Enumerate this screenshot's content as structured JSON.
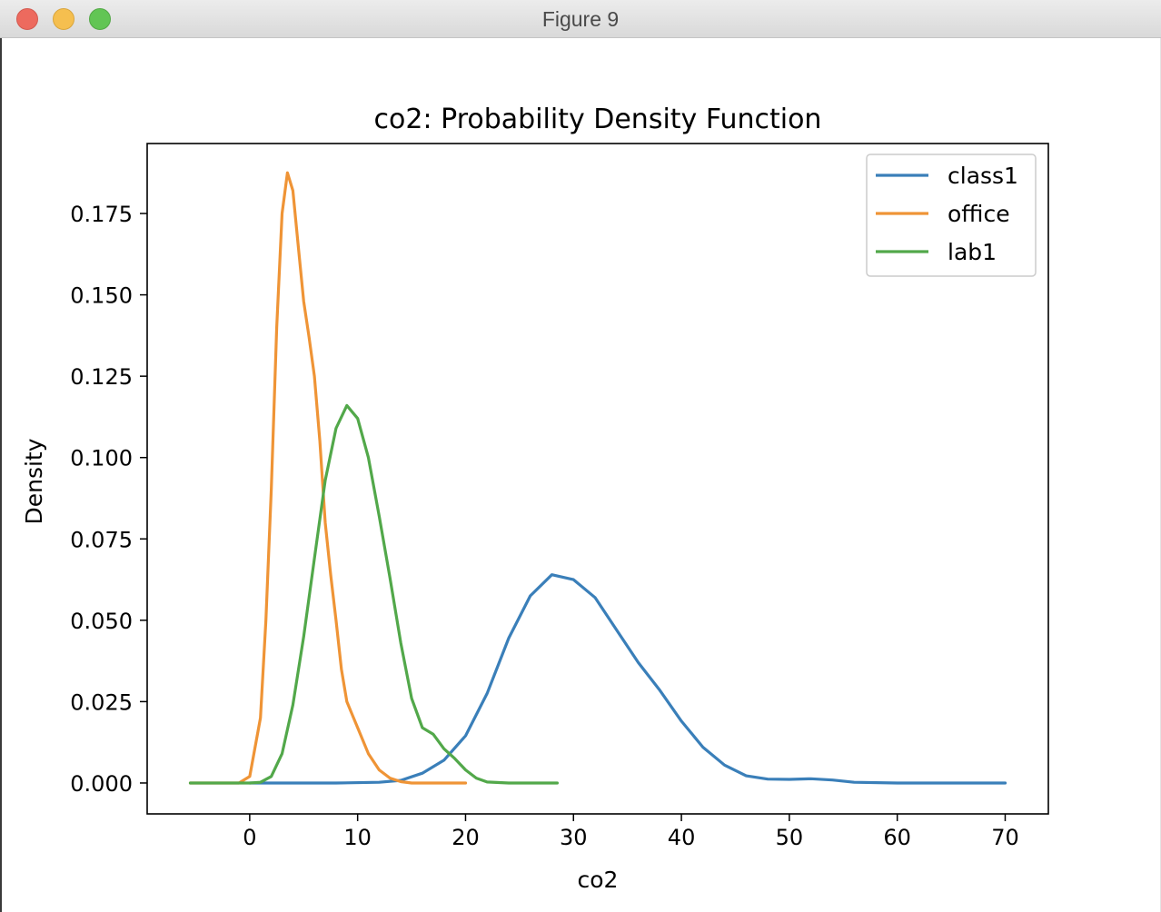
{
  "window": {
    "title": "Figure 9"
  },
  "chart_data": {
    "type": "line",
    "title": "co2: Probability Density Function",
    "xlabel": "co2",
    "ylabel": "Density",
    "xlim": [
      -9.5,
      74
    ],
    "ylim": [
      -0.0095,
      0.1965
    ],
    "xticks": [
      0,
      10,
      20,
      30,
      40,
      50,
      60,
      70
    ],
    "yticks": [
      0.0,
      0.025,
      0.05,
      0.075,
      0.1,
      0.125,
      0.15,
      0.175
    ],
    "ytick_labels": [
      "0.000",
      "0.025",
      "0.050",
      "0.075",
      "0.100",
      "0.125",
      "0.150",
      "0.175"
    ],
    "grid": false,
    "legend": "top-right",
    "series": [
      {
        "name": "class1",
        "color": "#3a7fb9",
        "x": [
          0,
          8,
          12,
          14,
          16,
          18,
          20,
          22,
          24,
          26,
          28,
          30,
          32,
          34,
          36,
          38,
          40,
          42,
          44,
          46,
          48,
          50,
          52,
          54,
          56,
          60,
          65,
          70
        ],
        "y": [
          0,
          0,
          0.0002,
          0.0008,
          0.003,
          0.007,
          0.0145,
          0.0275,
          0.0445,
          0.0575,
          0.064,
          0.0625,
          0.057,
          0.047,
          0.037,
          0.0285,
          0.019,
          0.011,
          0.0055,
          0.0022,
          0.0012,
          0.0011,
          0.0013,
          0.0009,
          0.0002,
          0,
          0,
          0
        ]
      },
      {
        "name": "office",
        "color": "#ef9436",
        "x": [
          -5.5,
          -1,
          0,
          1,
          1.5,
          2,
          2.5,
          3,
          3.5,
          4,
          4.5,
          5,
          5.5,
          6,
          6.5,
          7,
          7.5,
          8,
          8.5,
          9,
          9.5,
          10,
          11,
          12,
          13,
          14,
          15,
          16,
          18,
          20
        ],
        "y": [
          0,
          0,
          0.002,
          0.02,
          0.05,
          0.09,
          0.14,
          0.175,
          0.1875,
          0.182,
          0.165,
          0.148,
          0.137,
          0.125,
          0.105,
          0.08,
          0.064,
          0.05,
          0.035,
          0.025,
          0.021,
          0.017,
          0.009,
          0.004,
          0.0015,
          0.0004,
          0,
          0,
          0,
          0
        ]
      },
      {
        "name": "lab1",
        "color": "#52a84a",
        "x": [
          -5.5,
          0,
          1,
          2,
          3,
          4,
          5,
          6,
          7,
          8,
          9,
          10,
          11,
          12,
          13,
          14,
          15,
          16,
          17,
          18,
          19,
          20,
          21,
          22,
          24,
          28.5
        ],
        "y": [
          0,
          0,
          0.0002,
          0.002,
          0.009,
          0.024,
          0.045,
          0.069,
          0.093,
          0.109,
          0.116,
          0.112,
          0.1,
          0.082,
          0.063,
          0.043,
          0.026,
          0.017,
          0.015,
          0.0105,
          0.0075,
          0.004,
          0.0015,
          0.0003,
          0,
          0
        ]
      }
    ]
  }
}
